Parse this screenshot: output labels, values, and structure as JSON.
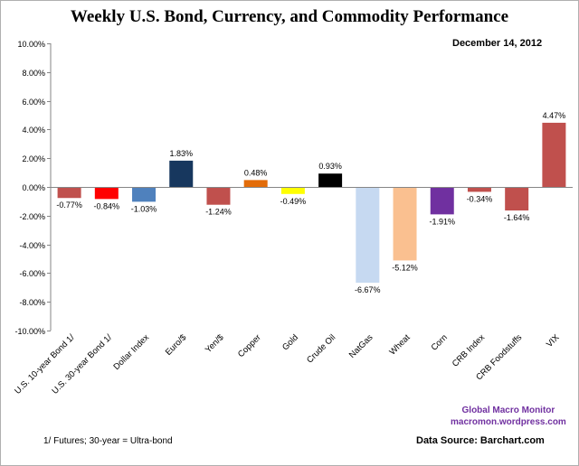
{
  "title": "Weekly U.S. Bond, Currency, and Commodity Performance",
  "date": "December 14, 2012",
  "footnote": "1/ Futures; 30-year = Ultra-bond",
  "credit": {
    "line1": "Global Macro Monitor",
    "line2": "macromon.wordpress.com"
  },
  "source": "Data Source:  Barchart.com",
  "chart_data": {
    "type": "bar",
    "title": "Weekly U.S. Bond, Currency, and Commodity Performance",
    "xlabel": "",
    "ylabel": "",
    "ylim": [
      -10,
      10
    ],
    "yticks": [
      -10,
      -8,
      -6,
      -4,
      -2,
      0,
      2,
      4,
      6,
      8,
      10
    ],
    "ytick_labels": [
      "-10.00%",
      "-8.00%",
      "-6.00%",
      "-4.00%",
      "-2.00%",
      "0.00%",
      "2.00%",
      "4.00%",
      "6.00%",
      "8.00%",
      "10.00%"
    ],
    "categories": [
      "U.S. 10-year Bond 1/",
      "U.S. 30-year Bond 1/",
      "Dollar Index",
      "Euro/$",
      "Yen/$",
      "Copper",
      "Gold",
      "Crude Oil",
      "NatGas",
      "Wheat",
      "Corn",
      "CRB Index",
      "CRB Foodstuffs",
      "VIX"
    ],
    "values": [
      -0.77,
      -0.84,
      -1.03,
      1.83,
      -1.24,
      0.48,
      -0.49,
      0.93,
      -6.67,
      -5.12,
      -1.91,
      -0.34,
      -1.64,
      4.47
    ],
    "value_labels": [
      "-0.77%",
      "-0.84%",
      "-1.03%",
      "1.83%",
      "-1.24%",
      "0.48%",
      "-0.49%",
      "0.93%",
      "-6.67%",
      "-5.12%",
      "-1.91%",
      "-0.34%",
      "-1.64%",
      "4.47%"
    ],
    "colors": [
      "#c0504d",
      "#ff0000",
      "#4f81bd",
      "#17375e",
      "#c0504d",
      "#e36c09",
      "#ffff00",
      "#000000",
      "#c6d9f1",
      "#fac090",
      "#7030a0",
      "#c0504d",
      "#c0504d",
      "#c0504d"
    ]
  }
}
